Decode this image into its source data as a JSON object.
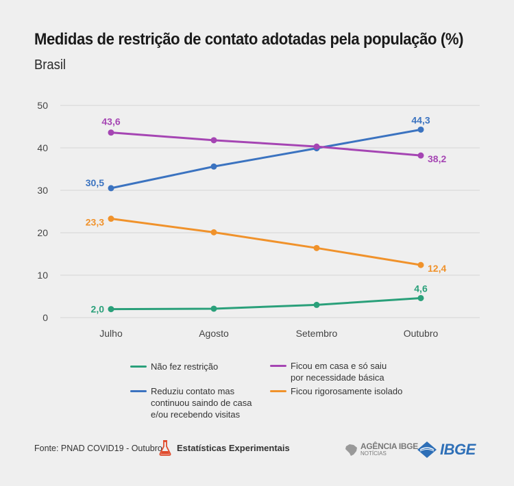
{
  "title": "Medidas de restrição de contato adotadas pela população (%)",
  "subtitle": "Brasil",
  "chart_data": {
    "type": "line",
    "categories": [
      "Julho",
      "Agosto",
      "Setembro",
      "Outubro"
    ],
    "ylim": [
      0,
      50
    ],
    "yticks": [
      0,
      10,
      20,
      30,
      40,
      50
    ],
    "grid": true,
    "legend_position": "bottom",
    "series": [
      {
        "name": "Não fez restrição",
        "color": "#2aa07a",
        "values": [
          2.0,
          2.1,
          3.0,
          4.6
        ],
        "labels": [
          "2,0",
          "",
          "",
          "4,6"
        ]
      },
      {
        "name": "Reduziu contato mas continuou saindo de casa e/ou recebendo visitas",
        "color": "#3b73c0",
        "values": [
          30.5,
          35.6,
          39.9,
          44.3
        ],
        "labels": [
          "30,5",
          "",
          "",
          "44,3"
        ]
      },
      {
        "name": "Ficou em casa e só saiu por necessidade básica",
        "color": "#a545b3",
        "values": [
          43.6,
          41.8,
          40.3,
          38.2
        ],
        "labels": [
          "43,6",
          "",
          "",
          "38,2"
        ]
      },
      {
        "name": "Ficou rigorosamente isolado",
        "color": "#f0922b",
        "values": [
          23.3,
          20.1,
          16.4,
          12.4
        ],
        "labels": [
          "23,3",
          "",
          "",
          "12,4"
        ]
      }
    ]
  },
  "legend": [
    {
      "lines": [
        "Não fez restrição"
      ],
      "color": "#2aa07a"
    },
    {
      "lines": [
        "Reduziu contato mas",
        "continuou saindo de casa",
        "e/ou recebendo visitas"
      ],
      "color": "#3b73c0"
    },
    {
      "lines": [
        "Ficou em casa e só saiu",
        "por necessidade básica"
      ],
      "color": "#a545b3"
    },
    {
      "lines": [
        "Ficou rigorosamente isolado"
      ],
      "color": "#f0922b"
    }
  ],
  "footer": {
    "source": "Fonte: PNAD COVID19 - Outubro",
    "experimental": "Estatísticas Experimentais",
    "agencia_brand": "AGÊNCIA IBGE",
    "agencia_sub": "NOTÍCIAS",
    "ibge": "IBGE"
  }
}
